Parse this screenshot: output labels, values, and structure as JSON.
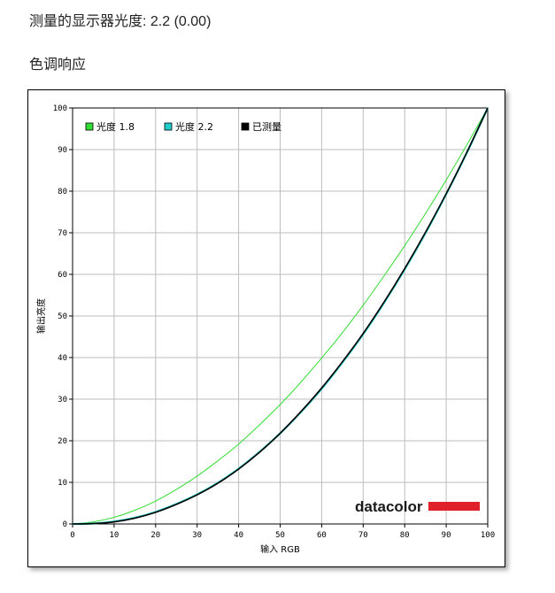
{
  "header": {
    "gamma_label": "测量的显示器光度:",
    "gamma_value": "2.2 (0.00)",
    "section_title": "色调响应"
  },
  "brand": {
    "name": "datacolor",
    "bar_color": "#e0202a"
  },
  "chart_data": {
    "type": "line",
    "title": "",
    "xlabel": "输入 RGB",
    "ylabel": "输出亮度",
    "xlim": [
      0,
      100
    ],
    "ylim": [
      0,
      100
    ],
    "xticks": [
      0,
      10,
      20,
      30,
      40,
      50,
      60,
      70,
      80,
      90,
      100
    ],
    "yticks": [
      0,
      10,
      20,
      30,
      40,
      50,
      60,
      70,
      80,
      90,
      100
    ],
    "grid": true,
    "legend_position": "top-left",
    "x": [
      0,
      5,
      10,
      15,
      20,
      25,
      30,
      35,
      40,
      45,
      50,
      55,
      60,
      65,
      70,
      75,
      80,
      85,
      90,
      95,
      100
    ],
    "series": [
      {
        "name": "光度 1.8",
        "color": "#33dd33",
        "values": [
          0,
          0.5,
          1.6,
          3.3,
          5.5,
          8.3,
          11.5,
          15.2,
          19.2,
          23.8,
          28.7,
          34.1,
          39.9,
          46.0,
          52.6,
          59.6,
          66.9,
          74.6,
          82.7,
          91.2,
          100
        ]
      },
      {
        "name": "光度 2.2",
        "color": "#22cccc",
        "values": [
          0,
          0.1,
          0.6,
          1.5,
          2.9,
          4.8,
          7.1,
          9.9,
          13.3,
          17.3,
          21.8,
          26.9,
          32.5,
          38.8,
          45.6,
          53.1,
          61.2,
          69.9,
          79.3,
          89.3,
          100
        ]
      },
      {
        "name": "已测量",
        "color": "#000000",
        "values": [
          0,
          0.1,
          0.5,
          1.4,
          2.8,
          4.7,
          7.0,
          9.8,
          13.2,
          17.2,
          21.8,
          27.0,
          32.7,
          39.0,
          45.8,
          53.3,
          61.4,
          70.1,
          79.4,
          89.4,
          100
        ]
      }
    ]
  }
}
